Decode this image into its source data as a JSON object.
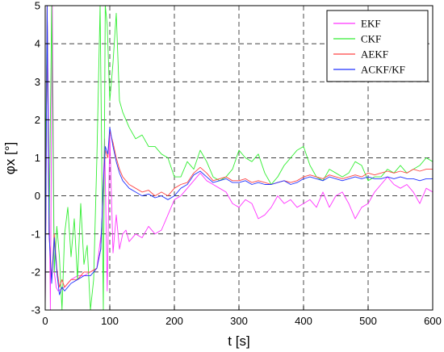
{
  "chart_data": {
    "type": "line",
    "xlabel": "t [s]",
    "ylabel": "φx [°]",
    "xlim": [
      0,
      600
    ],
    "ylim": [
      -3,
      5
    ],
    "xticks": [
      0,
      100,
      200,
      300,
      400,
      500,
      600
    ],
    "yticks": [
      -3,
      -2,
      -1,
      0,
      1,
      2,
      3,
      4,
      5
    ],
    "grid": true,
    "legend_position": "top-right",
    "series": [
      {
        "name": "EKF",
        "color": "#ff33ff",
        "x": [
          0,
          3,
          5,
          8,
          11,
          14,
          17,
          20,
          30,
          40,
          50,
          60,
          70,
          80,
          88,
          92,
          96,
          100,
          105,
          110,
          115,
          120,
          125,
          130,
          140,
          150,
          160,
          170,
          180,
          190,
          200,
          210,
          220,
          230,
          240,
          250,
          260,
          270,
          280,
          290,
          300,
          310,
          320,
          330,
          340,
          350,
          360,
          370,
          380,
          390,
          400,
          410,
          420,
          430,
          440,
          450,
          460,
          470,
          480,
          490,
          500,
          510,
          520,
          530,
          540,
          550,
          560,
          570,
          580,
          590,
          600
        ],
        "y": [
          -3,
          5,
          2,
          -3,
          5,
          -2,
          -2.4,
          -2.5,
          -2.4,
          -2.2,
          -2.1,
          -2.1,
          -2.0,
          -1.9,
          -0.8,
          1.5,
          -2.5,
          1.6,
          -1.5,
          -0.5,
          -1.4,
          -1.0,
          -0.9,
          -1.2,
          -1.0,
          -1.1,
          -0.8,
          -1.0,
          -0.9,
          -0.5,
          -0.1,
          0.0,
          0.2,
          0.4,
          0.6,
          0.4,
          0.3,
          0.2,
          0.1,
          -0.2,
          -0.3,
          -0.1,
          -0.2,
          -0.6,
          -0.5,
          -0.3,
          0.0,
          -0.2,
          -0.1,
          -0.3,
          -0.2,
          -0.1,
          -0.3,
          0.1,
          -0.3,
          0.0,
          0.1,
          -0.2,
          -0.6,
          -0.3,
          -0.2,
          0.1,
          0.3,
          0.5,
          0.3,
          0.2,
          0.3,
          0.1,
          -0.2,
          0.2,
          0.1
        ]
      },
      {
        "name": "CKF",
        "color": "#33ee33",
        "x": [
          0,
          3,
          6,
          10,
          14,
          18,
          22,
          26,
          30,
          35,
          40,
          45,
          50,
          55,
          60,
          65,
          70,
          75,
          80,
          85,
          90,
          93,
          96,
          100,
          105,
          110,
          115,
          120,
          130,
          140,
          150,
          160,
          170,
          180,
          190,
          200,
          210,
          220,
          230,
          240,
          250,
          260,
          270,
          280,
          290,
          300,
          310,
          320,
          330,
          340,
          350,
          360,
          370,
          380,
          390,
          400,
          410,
          420,
          430,
          440,
          450,
          460,
          470,
          480,
          490,
          500,
          510,
          520,
          530,
          540,
          550,
          560,
          570,
          580,
          590,
          600
        ],
        "y": [
          0,
          5,
          -1,
          5,
          -2,
          -0.8,
          -1.6,
          -3,
          -1.0,
          -0.3,
          -1.6,
          -0.6,
          -2.2,
          -0.2,
          -1.8,
          -1.3,
          -3,
          -2.2,
          1.0,
          5,
          -3,
          5,
          4.5,
          2.5,
          3.5,
          4.8,
          2.5,
          2.2,
          1.8,
          1.5,
          1.6,
          1.3,
          1.3,
          1.1,
          1.0,
          0.5,
          0.5,
          0.9,
          0.7,
          1.2,
          0.9,
          0.5,
          0.4,
          0.5,
          0.7,
          1.2,
          1.0,
          0.9,
          1.1,
          0.6,
          0.3,
          0.5,
          0.8,
          1.0,
          1.2,
          1.3,
          0.8,
          0.5,
          0.4,
          0.7,
          0.6,
          0.5,
          0.6,
          0.9,
          0.8,
          0.4,
          0.5,
          0.5,
          0.7,
          0.6,
          0.8,
          0.6,
          0.7,
          0.8,
          1.0,
          0.9
        ]
      },
      {
        "name": "AEKF",
        "color": "#ff4444",
        "x": [
          0,
          3,
          6,
          10,
          14,
          18,
          22,
          26,
          30,
          40,
          50,
          60,
          70,
          80,
          86,
          90,
          93,
          97,
          100,
          105,
          110,
          115,
          120,
          130,
          140,
          150,
          160,
          170,
          180,
          190,
          200,
          210,
          220,
          230,
          240,
          250,
          260,
          270,
          280,
          290,
          300,
          310,
          320,
          330,
          340,
          350,
          360,
          370,
          380,
          390,
          400,
          410,
          420,
          430,
          440,
          450,
          460,
          470,
          480,
          490,
          500,
          510,
          520,
          530,
          540,
          550,
          560,
          570,
          580,
          590,
          600
        ],
        "y": [
          -3,
          5,
          -1,
          -2.2,
          -1.0,
          -1.9,
          -2.4,
          -2.2,
          -2.4,
          -2.2,
          -2.2,
          -2.0,
          -2.0,
          -1.9,
          -1.4,
          0.2,
          1.2,
          1.0,
          1.7,
          1.4,
          1.0,
          0.7,
          0.5,
          0.3,
          0.2,
          0.1,
          0.15,
          0.0,
          0.1,
          0.0,
          0.2,
          0.3,
          0.35,
          0.6,
          0.75,
          0.6,
          0.4,
          0.45,
          0.5,
          0.4,
          0.4,
          0.45,
          0.35,
          0.4,
          0.35,
          0.3,
          0.35,
          0.4,
          0.35,
          0.4,
          0.5,
          0.55,
          0.5,
          0.45,
          0.55,
          0.5,
          0.45,
          0.5,
          0.55,
          0.5,
          0.6,
          0.55,
          0.6,
          0.65,
          0.6,
          0.65,
          0.6,
          0.7,
          0.65,
          0.7,
          0.7
        ]
      },
      {
        "name": "ACKF/KF",
        "color": "#2233ff",
        "x": [
          0,
          3,
          6,
          10,
          14,
          18,
          22,
          26,
          30,
          40,
          50,
          60,
          70,
          80,
          86,
          90,
          93,
          97,
          100,
          105,
          110,
          115,
          120,
          130,
          140,
          150,
          160,
          170,
          180,
          190,
          200,
          210,
          220,
          230,
          240,
          250,
          260,
          270,
          280,
          290,
          300,
          310,
          320,
          330,
          340,
          350,
          360,
          370,
          380,
          390,
          400,
          410,
          420,
          430,
          440,
          450,
          460,
          470,
          480,
          490,
          500,
          510,
          520,
          530,
          540,
          550,
          560,
          570,
          580,
          590,
          600
        ],
        "y": [
          -3,
          5,
          -1,
          -2.3,
          -1.1,
          -2.0,
          -2.6,
          -2.4,
          -2.5,
          -2.3,
          -2.2,
          -2.1,
          -2.1,
          -1.9,
          -1.4,
          0.3,
          1.3,
          1.1,
          1.8,
          1.3,
          0.9,
          0.6,
          0.4,
          0.2,
          0.1,
          0.0,
          0.05,
          -0.05,
          0.0,
          -0.1,
          0.0,
          0.2,
          0.3,
          0.55,
          0.65,
          0.5,
          0.35,
          0.4,
          0.45,
          0.35,
          0.35,
          0.4,
          0.3,
          0.35,
          0.3,
          0.3,
          0.35,
          0.4,
          0.3,
          0.35,
          0.45,
          0.5,
          0.45,
          0.4,
          0.5,
          0.45,
          0.4,
          0.45,
          0.5,
          0.45,
          0.5,
          0.45,
          0.45,
          0.5,
          0.45,
          0.5,
          0.45,
          0.45,
          0.4,
          0.45,
          0.45
        ]
      }
    ]
  }
}
